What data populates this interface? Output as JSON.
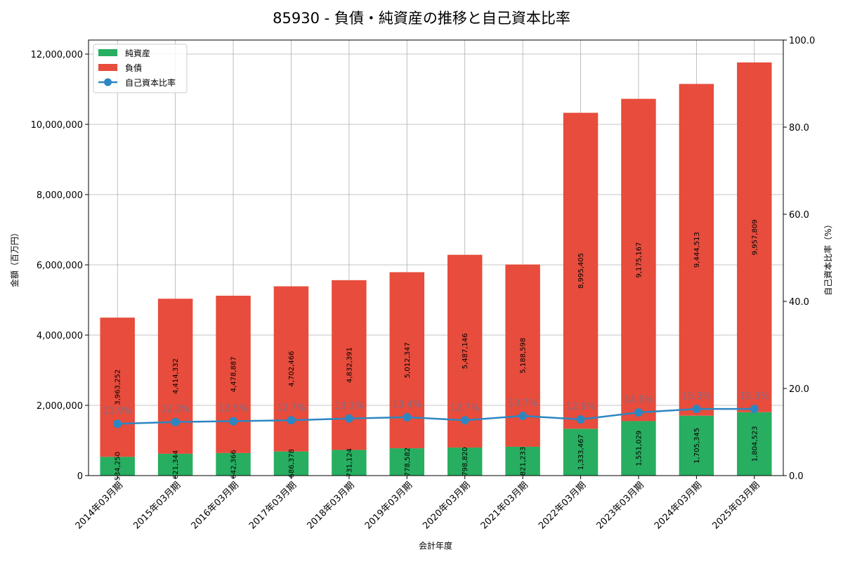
{
  "chart_data": {
    "type": "bar",
    "title": "85930 - 負債・純資産の推移と自己資本比率",
    "xlabel": "会計年度",
    "ylabel": "金額（百万円）",
    "y2label": "自己資本比率（%）",
    "ylim": [
      0,
      12400000
    ],
    "y2lim": [
      0,
      100
    ],
    "yticks": [
      "0",
      "2,000,000",
      "4,000,000",
      "6,000,000",
      "8,000,000",
      "10,000,000",
      "12,000,000"
    ],
    "y2ticks": [
      "0.0",
      "20.0",
      "40.0",
      "60.0",
      "80.0",
      "100.0"
    ],
    "grid": true,
    "legend_position": "top-left",
    "categories": [
      "2014年03月期",
      "2015年03月期",
      "2016年03月期",
      "2017年03月期",
      "2018年03月期",
      "2019年03月期",
      "2020年03月期",
      "2021年03月期",
      "2022年03月期",
      "2023年03月期",
      "2024年03月期",
      "2025年03月期"
    ],
    "series": [
      {
        "name": "純資産",
        "color": "#27ae60",
        "values": [
          534250,
          621344,
          642366,
          686378,
          731124,
          778582,
          798820,
          821233,
          1333467,
          1551029,
          1705345,
          1804523
        ],
        "labels": [
          "534,250",
          "621,344",
          "642,366",
          "686,378",
          "731,124",
          "778,582",
          "798,820",
          "821,233",
          "1,333,467",
          "1,551,029",
          "1,705,345",
          "1,804,523"
        ]
      },
      {
        "name": "負債",
        "color": "#e74c3c",
        "values": [
          3963252,
          4414332,
          4478887,
          4702466,
          4832391,
          5012347,
          5487146,
          5188598,
          8995405,
          9175167,
          9444513,
          9957809
        ],
        "labels": [
          "3,963,252",
          "4,414,332",
          "4,478,887",
          "4,702,466",
          "4,832,391",
          "5,012,347",
          "5,487,146",
          "5,188,598",
          "8,995,405",
          "9,175,167",
          "9,444,513",
          "9,957,809"
        ]
      },
      {
        "name": "自己資本比率",
        "color": "#2e86c1",
        "axis": "right",
        "values": [
          11.9,
          12.3,
          12.5,
          12.7,
          13.1,
          13.4,
          12.7,
          13.7,
          12.9,
          14.5,
          15.3,
          15.3
        ],
        "labels": [
          "11.9%",
          "12.3%",
          "12.5%",
          "12.7%",
          "13.1%",
          "13.4%",
          "12.7%",
          "13.7%",
          "12.9%",
          "14.5%",
          "15.3%",
          "15.3%"
        ]
      }
    ]
  }
}
